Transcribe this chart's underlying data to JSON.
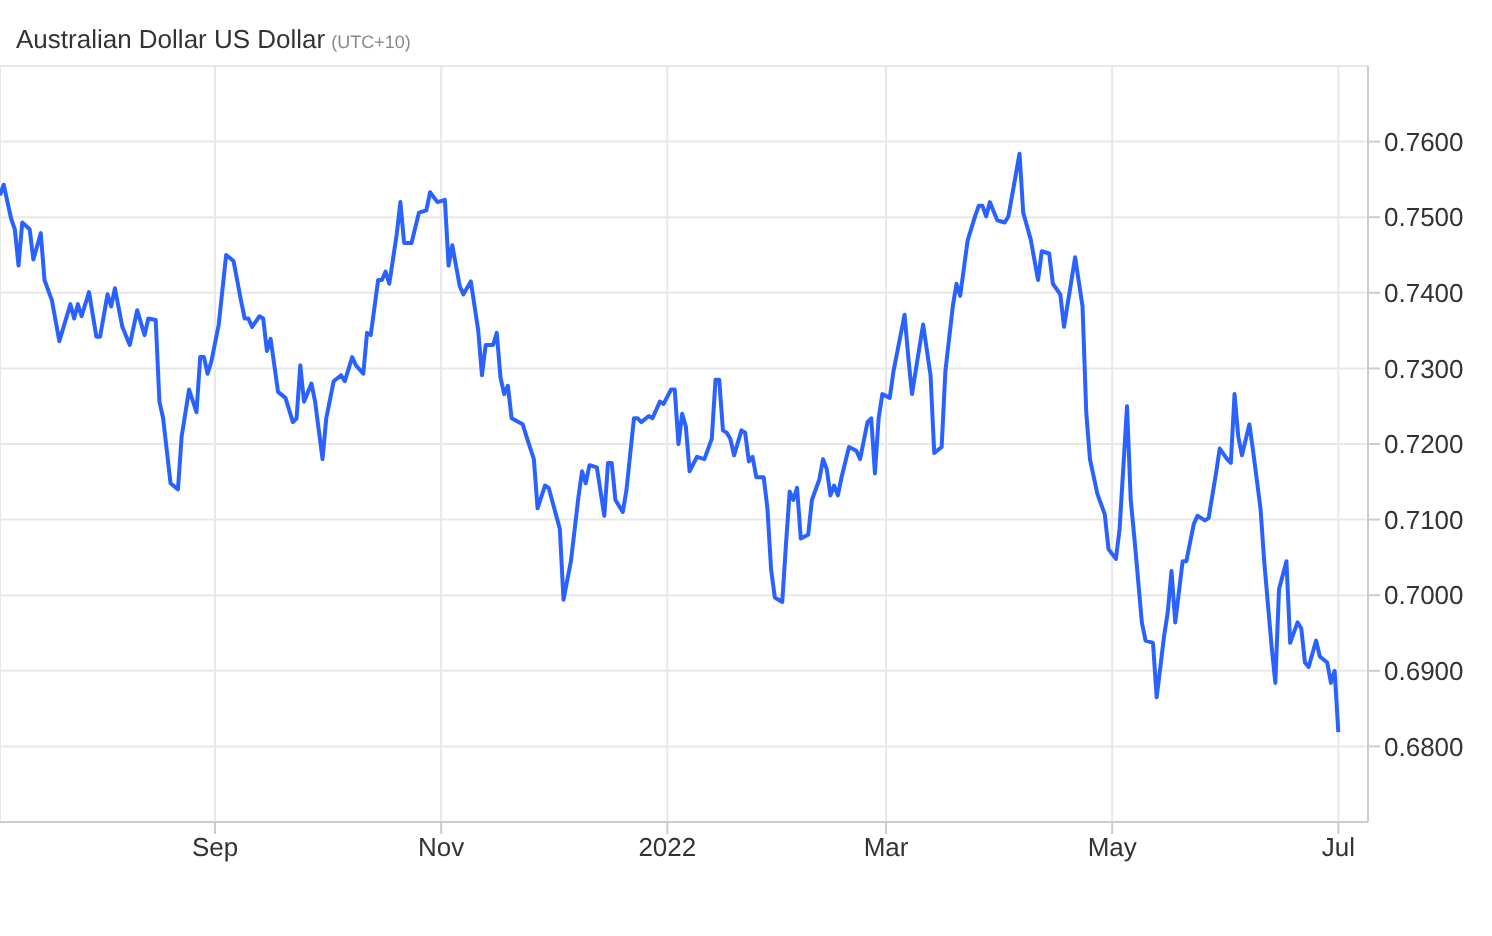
{
  "chart_data": {
    "type": "line",
    "title": "Australian Dollar US Dollar",
    "subtitle": "(UTC+10)",
    "x": [
      "2021-07-05",
      "2021-07-06",
      "2021-07-08",
      "2021-07-09",
      "2021-07-10",
      "2021-07-11",
      "2021-07-13",
      "2021-07-14",
      "2021-07-16",
      "2021-07-17",
      "2021-07-19",
      "2021-07-21",
      "2021-07-24",
      "2021-07-25",
      "2021-07-26",
      "2021-07-27",
      "2021-07-29",
      "2021-07-31",
      "2021-08-01",
      "2021-08-03",
      "2021-08-04",
      "2021-08-05",
      "2021-08-07",
      "2021-08-09",
      "2021-08-11",
      "2021-08-13",
      "2021-08-14",
      "2021-08-16",
      "2021-08-17",
      "2021-08-18",
      "2021-08-20",
      "2021-08-22",
      "2021-08-23",
      "2021-08-25",
      "2021-08-27",
      "2021-08-28",
      "2021-08-29",
      "2021-08-30",
      "2021-08-31",
      "2021-09-02",
      "2021-09-04",
      "2021-09-06",
      "2021-09-08",
      "2021-09-09",
      "2021-09-10",
      "2021-09-11",
      "2021-09-13",
      "2021-09-14",
      "2021-09-15",
      "2021-09-16",
      "2021-09-18",
      "2021-09-20",
      "2021-09-22",
      "2021-09-23",
      "2021-09-24",
      "2021-09-25",
      "2021-09-27",
      "2021-09-28",
      "2021-09-30",
      "2021-10-01",
      "2021-10-03",
      "2021-10-05",
      "2021-10-06",
      "2021-10-08",
      "2021-10-09",
      "2021-10-11",
      "2021-10-12",
      "2021-10-13",
      "2021-10-15",
      "2021-10-16",
      "2021-10-17",
      "2021-10-18",
      "2021-10-20",
      "2021-10-21",
      "2021-10-22",
      "2021-10-24",
      "2021-10-26",
      "2021-10-28",
      "2021-10-29",
      "2021-10-31",
      "2021-11-02",
      "2021-11-03",
      "2021-11-04",
      "2021-11-06",
      "2021-11-07",
      "2021-11-09",
      "2021-11-11",
      "2021-11-12",
      "2021-11-13",
      "2021-11-15",
      "2021-11-16",
      "2021-11-17",
      "2021-11-18",
      "2021-11-19",
      "2021-11-20",
      "2021-11-23",
      "2021-11-24",
      "2021-11-26",
      "2021-11-27",
      "2021-11-29",
      "2021-11-30",
      "2021-12-03",
      "2021-12-04",
      "2021-12-06",
      "2021-12-08",
      "2021-12-09",
      "2021-12-10",
      "2021-12-11",
      "2021-12-13",
      "2021-12-15",
      "2021-12-16",
      "2021-12-17",
      "2021-12-18",
      "2021-12-20",
      "2021-12-21",
      "2021-12-23",
      "2021-12-24",
      "2021-12-25",
      "2021-12-27",
      "2021-12-28",
      "2021-12-30",
      "2021-12-31",
      "2022-01-02",
      "2022-01-03",
      "2022-01-04",
      "2022-01-05",
      "2022-01-06",
      "2022-01-07",
      "2022-01-09",
      "2022-01-11",
      "2022-01-13",
      "2022-01-14",
      "2022-01-15",
      "2022-01-16",
      "2022-01-17",
      "2022-01-18",
      "2022-01-19",
      "2022-01-21",
      "2022-01-22",
      "2022-01-23",
      "2022-01-24",
      "2022-01-25",
      "2022-01-27",
      "2022-01-28",
      "2022-01-29",
      "2022-01-30",
      "2022-02-01",
      "2022-02-02",
      "2022-02-03",
      "2022-02-04",
      "2022-02-05",
      "2022-02-06",
      "2022-02-08",
      "2022-02-09",
      "2022-02-11",
      "2022-02-12",
      "2022-02-13",
      "2022-02-14",
      "2022-02-15",
      "2022-02-16",
      "2022-02-17",
      "2022-02-19",
      "2022-02-21",
      "2022-02-22",
      "2022-02-24",
      "2022-02-25",
      "2022-02-26",
      "2022-02-27",
      "2022-02-28",
      "2022-03-02",
      "2022-03-03",
      "2022-03-06",
      "2022-03-07",
      "2022-03-08",
      "2022-03-10",
      "2022-03-11",
      "2022-03-13",
      "2022-03-14",
      "2022-03-16",
      "2022-03-17",
      "2022-03-19",
      "2022-03-20",
      "2022-03-21",
      "2022-03-23",
      "2022-03-25",
      "2022-03-26",
      "2022-03-27",
      "2022-03-28",
      "2022-03-29",
      "2022-03-31",
      "2022-04-02",
      "2022-04-03",
      "2022-04-06",
      "2022-04-07",
      "2022-04-09",
      "2022-04-11",
      "2022-04-12",
      "2022-04-14",
      "2022-04-15",
      "2022-04-17",
      "2022-04-18",
      "2022-04-21",
      "2022-04-23",
      "2022-04-24",
      "2022-04-25",
      "2022-04-27",
      "2022-04-29",
      "2022-04-30",
      "2022-05-02",
      "2022-05-03",
      "2022-05-05",
      "2022-05-06",
      "2022-05-07",
      "2022-05-09",
      "2022-05-10",
      "2022-05-12",
      "2022-05-13",
      "2022-05-15",
      "2022-05-16",
      "2022-05-17",
      "2022-05-18",
      "2022-05-20",
      "2022-05-21",
      "2022-05-23",
      "2022-05-24",
      "2022-05-26",
      "2022-05-27",
      "2022-05-29",
      "2022-05-30",
      "2022-06-01",
      "2022-06-02",
      "2022-06-03",
      "2022-06-04",
      "2022-06-05",
      "2022-06-07",
      "2022-06-08",
      "2022-06-10",
      "2022-06-11",
      "2022-06-13",
      "2022-06-14",
      "2022-06-15",
      "2022-06-17",
      "2022-06-18",
      "2022-06-20",
      "2022-06-21",
      "2022-06-22",
      "2022-06-23",
      "2022-06-25",
      "2022-06-26",
      "2022-06-28",
      "2022-06-29",
      "2022-06-30",
      "2022-07-01"
    ],
    "values": [
      0.7529,
      0.7543,
      0.7498,
      0.7484,
      0.7436,
      0.7493,
      0.7484,
      0.7444,
      0.7479,
      0.7417,
      0.739,
      0.7336,
      0.7385,
      0.7366,
      0.7385,
      0.7369,
      0.7401,
      0.7342,
      0.7342,
      0.7398,
      0.7382,
      0.7406,
      0.7355,
      0.7331,
      0.7377,
      0.7344,
      0.7366,
      0.7364,
      0.7256,
      0.7234,
      0.7148,
      0.714,
      0.721,
      0.7272,
      0.7242,
      0.7315,
      0.7315,
      0.7293,
      0.7309,
      0.7358,
      0.745,
      0.7442,
      0.739,
      0.7366,
      0.7366,
      0.7355,
      0.7369,
      0.7366,
      0.7323,
      0.7339,
      0.7269,
      0.7261,
      0.7229,
      0.7234,
      0.7304,
      0.7256,
      0.728,
      0.7256,
      0.718,
      0.7234,
      0.7283,
      0.7291,
      0.7283,
      0.7315,
      0.7304,
      0.7293,
      0.7347,
      0.7344,
      0.7417,
      0.7417,
      0.7428,
      0.7412,
      0.7477,
      0.752,
      0.7466,
      0.7466,
      0.7506,
      0.7509,
      0.7533,
      0.752,
      0.7523,
      0.7436,
      0.7463,
      0.7409,
      0.7398,
      0.7415,
      0.735,
      0.7291,
      0.7331,
      0.7331,
      0.7347,
      0.7288,
      0.7266,
      0.7277,
      0.7234,
      0.7226,
      0.721,
      0.718,
      0.7115,
      0.7145,
      0.7142,
      0.7088,
      0.6994,
      0.7045,
      0.7129,
      0.7164,
      0.7148,
      0.7172,
      0.7169,
      0.7105,
      0.7175,
      0.7175,
      0.7126,
      0.711,
      0.714,
      0.7234,
      0.7234,
      0.7229,
      0.7237,
      0.7234,
      0.7256,
      0.7253,
      0.7272,
      0.7272,
      0.72,
      0.724,
      0.7223,
      0.7164,
      0.7183,
      0.718,
      0.7207,
      0.7285,
      0.7285,
      0.7218,
      0.7215,
      0.7207,
      0.7185,
      0.7218,
      0.7215,
      0.7177,
      0.7183,
      0.7156,
      0.7156,
      0.7115,
      0.7034,
      0.6997,
      0.6991,
      0.7067,
      0.7137,
      0.7126,
      0.7142,
      0.7075,
      0.708,
      0.7126,
      0.7153,
      0.718,
      0.7167,
      0.7132,
      0.7145,
      0.7132,
      0.7156,
      0.7196,
      0.7191,
      0.718,
      0.7229,
      0.7234,
      0.7161,
      0.7234,
      0.7266,
      0.7261,
      0.7296,
      0.7371,
      0.7315,
      0.7266,
      0.7328,
      0.7358,
      0.7291,
      0.7188,
      0.7196,
      0.7296,
      0.7382,
      0.7412,
      0.7396,
      0.7469,
      0.7501,
      0.7515,
      0.7515,
      0.7501,
      0.752,
      0.7496,
      0.7493,
      0.7501,
      0.7584,
      0.7506,
      0.7471,
      0.7417,
      0.7455,
      0.7452,
      0.7412,
      0.7398,
      0.7355,
      0.7447,
      0.7382,
      0.7242,
      0.718,
      0.7134,
      0.7107,
      0.7061,
      0.7048,
      0.7088,
      0.725,
      0.7126,
      0.7075,
      0.6964,
      0.694,
      0.6937,
      0.6865,
      0.6946,
      0.6978,
      0.7032,
      0.6964,
      0.7045,
      0.7045,
      0.7094,
      0.7105,
      0.7099,
      0.7102,
      0.7161,
      0.7194,
      0.718,
      0.7175,
      0.7266,
      0.721,
      0.7185,
      0.7226,
      0.7191,
      0.7115,
      0.7045,
      0.6932,
      0.6884,
      0.7008,
      0.7045,
      0.6937,
      0.6964,
      0.6956,
      0.6911,
      0.6905,
      0.694,
      0.6919,
      0.6911,
      0.6884,
      0.69,
      0.6819
    ],
    "color": "#2962ff",
    "xlim": [
      "2021-07-05",
      "2022-07-09"
    ],
    "xticks": [
      {
        "value": "2021-09-01",
        "label": "Sep"
      },
      {
        "value": "2021-11-01",
        "label": "Nov"
      },
      {
        "value": "2022-01-01",
        "label": "2022"
      },
      {
        "value": "2022-03-01",
        "label": "Mar"
      },
      {
        "value": "2022-05-01",
        "label": "May"
      },
      {
        "value": "2022-07-01",
        "label": "Jul"
      }
    ],
    "ylim": [
      0.67,
      0.77
    ],
    "yticks": [
      {
        "value": 0.68,
        "label": "0.6800"
      },
      {
        "value": 0.69,
        "label": "0.6900"
      },
      {
        "value": 0.7,
        "label": "0.7000"
      },
      {
        "value": 0.71,
        "label": "0.7100"
      },
      {
        "value": 0.72,
        "label": "0.7200"
      },
      {
        "value": 0.73,
        "label": "0.7300"
      },
      {
        "value": 0.74,
        "label": "0.7400"
      },
      {
        "value": 0.75,
        "label": "0.7500"
      },
      {
        "value": 0.76,
        "label": "0.7600"
      }
    ],
    "grid": true,
    "marker": "none",
    "line_style": "solid"
  }
}
